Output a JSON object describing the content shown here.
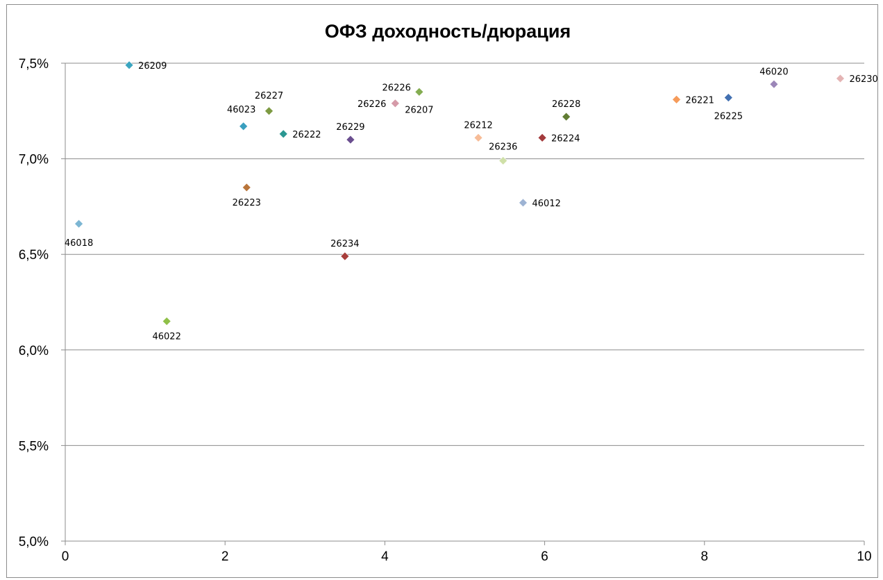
{
  "chart_data": {
    "type": "scatter",
    "title": "ОФЗ доходность/дюрация",
    "xlabel": "",
    "ylabel": "",
    "xlim": [
      0,
      10
    ],
    "ylim": [
      5.0,
      7.5
    ],
    "x_ticks": [
      0,
      2,
      4,
      6,
      8,
      10
    ],
    "x_tick_labels": [
      "0",
      "2",
      "4",
      "6",
      "8",
      "10"
    ],
    "y_ticks": [
      5.0,
      5.5,
      6.0,
      6.5,
      7.0,
      7.5
    ],
    "y_tick_labels": [
      "5,0%",
      "5,5%",
      "6,0%",
      "6,5%",
      "7,0%",
      "7,5%"
    ],
    "grid": "horizontal",
    "legend": "none",
    "points": [
      {
        "label": "46018",
        "x": 0.17,
        "y": 6.66,
        "color": "#7cb6d3",
        "label_pos": "below"
      },
      {
        "label": "26209",
        "x": 0.8,
        "y": 7.49,
        "color": "#3aa5c0",
        "label_pos": "right"
      },
      {
        "label": "46022",
        "x": 1.27,
        "y": 6.15,
        "color": "#8fc048",
        "label_pos": "below"
      },
      {
        "label": "46023",
        "x": 2.23,
        "y": 7.17,
        "color": "#3a9fbf",
        "label_pos": "left-up"
      },
      {
        "label": "26223",
        "x": 2.27,
        "y": 6.85,
        "color": "#b9753a",
        "label_pos": "below"
      },
      {
        "label": "26227",
        "x": 2.55,
        "y": 7.25,
        "color": "#7d9a42",
        "label_pos": "above"
      },
      {
        "label": "26222",
        "x": 2.73,
        "y": 7.13,
        "color": "#2a9792",
        "label_pos": "right"
      },
      {
        "label": "26234",
        "x": 3.5,
        "y": 6.49,
        "color": "#a83e3b",
        "label_pos": "above"
      },
      {
        "label": "26229",
        "x": 3.57,
        "y": 7.1,
        "color": "#6a4e8f",
        "label_pos": "above"
      },
      {
        "label": "26226",
        "x": 4.13,
        "y": 7.29,
        "color": "#d59aa8",
        "label_pos": "left"
      },
      {
        "label": "26207",
        "x": 4.43,
        "y": 7.35,
        "color": "#84ad51",
        "label_pos": "below"
      },
      {
        "label": "26226",
        "x": 4.43,
        "y": 7.35,
        "color": "#84ad51",
        "label_pos": "left-up"
      },
      {
        "label": "26212",
        "x": 5.17,
        "y": 7.11,
        "color": "#f7bc97",
        "label_pos": "above"
      },
      {
        "label": "26236",
        "x": 5.48,
        "y": 6.99,
        "color": "#cfe0a8",
        "label_pos": "above"
      },
      {
        "label": "46012",
        "x": 5.73,
        "y": 6.77,
        "color": "#9db3d3",
        "label_pos": "right"
      },
      {
        "label": "26224",
        "x": 5.97,
        "y": 7.11,
        "color": "#a33a3c",
        "label_pos": "right"
      },
      {
        "label": "26228",
        "x": 6.27,
        "y": 7.22,
        "color": "#617d34",
        "label_pos": "above"
      },
      {
        "label": "26221",
        "x": 7.65,
        "y": 7.31,
        "color": "#f69b5a",
        "label_pos": "right"
      },
      {
        "label": "26225",
        "x": 8.3,
        "y": 7.32,
        "color": "#4270b1",
        "label_pos": "below"
      },
      {
        "label": "46020",
        "x": 8.87,
        "y": 7.39,
        "color": "#9b86b8",
        "label_pos": "above"
      },
      {
        "label": "26230",
        "x": 9.7,
        "y": 7.42,
        "color": "#e4b4b4",
        "label_pos": "right"
      }
    ]
  }
}
